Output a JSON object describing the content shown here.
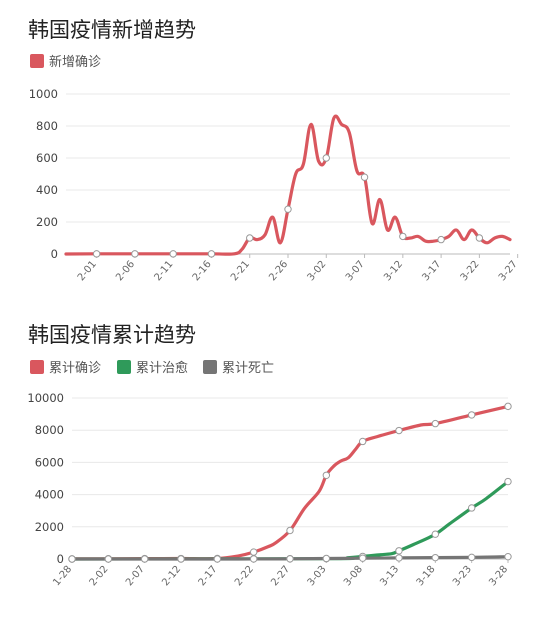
{
  "chart_data": [
    {
      "type": "line",
      "title": "韩国疫情新增趋势",
      "legend": [
        "新增确诊"
      ],
      "legend_placement": "top-left",
      "grid": true,
      "ylim": [
        0,
        1000
      ],
      "yticks": [
        0,
        200,
        400,
        600,
        800,
        1000
      ],
      "xlim": [
        0,
        58
      ],
      "x_tick_labels": [
        "2-01",
        "2-06",
        "2-11",
        "2-16",
        "2-21",
        "2-26",
        "3-02",
        "3-07",
        "3-12",
        "3-17",
        "3-22",
        "3-27"
      ],
      "x_tick_positions": [
        4,
        9,
        14,
        19,
        24,
        29,
        34,
        39,
        44,
        49,
        54,
        59
      ],
      "series": [
        {
          "name": "新增确诊",
          "color": "#d9575e",
          "x": [
            0,
            4,
            9,
            14,
            19,
            22,
            23,
            24,
            25,
            26,
            27,
            28,
            29,
            30,
            31,
            32,
            33,
            34,
            35,
            36,
            37,
            38,
            39,
            40,
            41,
            42,
            43,
            44,
            45,
            46,
            47,
            48,
            49,
            50,
            51,
            52,
            53,
            54,
            55,
            56,
            57,
            58
          ],
          "values": [
            0,
            1,
            1,
            1,
            1,
            1,
            30,
            100,
            90,
            120,
            230,
            70,
            280,
            500,
            560,
            810,
            580,
            600,
            850,
            810,
            760,
            520,
            480,
            190,
            340,
            150,
            230,
            110,
            100,
            110,
            80,
            80,
            90,
            110,
            150,
            90,
            150,
            100,
            70,
            100,
            110,
            90
          ]
        }
      ]
    },
    {
      "type": "line",
      "title": "韩国疫情累计趋势",
      "legend": [
        "累计确诊",
        "累计治愈",
        "累计死亡"
      ],
      "legend_placement": "top-left",
      "grid": true,
      "ylim": [
        0,
        10000
      ],
      "yticks": [
        0,
        2000,
        4000,
        6000,
        8000,
        10000
      ],
      "xlim": [
        0,
        60
      ],
      "x_tick_labels": [
        "1-28",
        "2-02",
        "2-07",
        "2-12",
        "2-17",
        "2-22",
        "2-27",
        "3-03",
        "3-08",
        "3-13",
        "3-18",
        "3-23",
        "3-28"
      ],
      "x_tick_positions": [
        0,
        5,
        10,
        15,
        20,
        25,
        30,
        35,
        40,
        45,
        50,
        55,
        60
      ],
      "series": [
        {
          "name": "累计确诊",
          "color": "#d9575e",
          "x": [
            0,
            5,
            10,
            15,
            20,
            23,
            25,
            27,
            28,
            30,
            32,
            34,
            35,
            36,
            37,
            38,
            39,
            40,
            42,
            45,
            48,
            50,
            55,
            60
          ],
          "values": [
            4,
            15,
            24,
            28,
            31,
            200,
            430,
            770,
            1000,
            1770,
            3150,
            4200,
            5200,
            5760,
            6090,
            6280,
            6800,
            7300,
            7600,
            7980,
            8320,
            8410,
            8950,
            9480
          ]
        },
        {
          "name": "累计治愈",
          "color": "#2f9a5a",
          "x": [
            0,
            35,
            38,
            40,
            42,
            44,
            45,
            47,
            50,
            52,
            55,
            57,
            60
          ],
          "values": [
            0,
            20,
            80,
            160,
            250,
            330,
            510,
            900,
            1540,
            2200,
            3170,
            3750,
            4810
          ]
        },
        {
          "name": "累计死亡",
          "color": "#757575",
          "x": [
            0,
            23,
            30,
            35,
            40,
            45,
            50,
            55,
            60
          ],
          "values": [
            0,
            2,
            13,
            32,
            51,
            67,
            84,
            104,
            144
          ]
        }
      ]
    }
  ]
}
